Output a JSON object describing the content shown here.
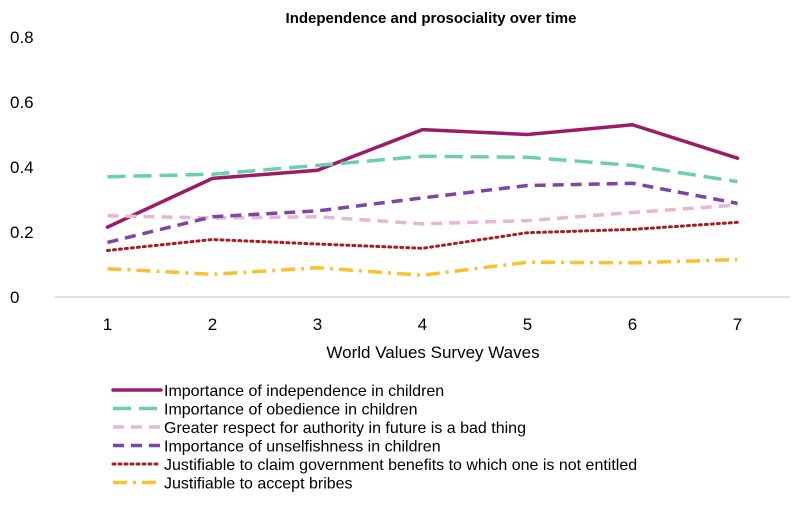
{
  "chart_data": {
    "type": "line",
    "title": "Independence and prosociality over time",
    "xlabel": "World Values Survey Waves",
    "ylabel": "",
    "x": [
      1,
      2,
      3,
      4,
      5,
      6,
      7
    ],
    "ylim": [
      0,
      0.8
    ],
    "yticks": [
      "0",
      "0.2",
      "0.4",
      "0.6",
      "0.8"
    ],
    "xticks": [
      "1",
      "2",
      "3",
      "4",
      "5",
      "6",
      "7"
    ],
    "grid": false,
    "legend_position": "bottom",
    "series": [
      {
        "name": "Importance of independence in children",
        "values": [
          0.215,
          0.365,
          0.39,
          0.515,
          0.5,
          0.53,
          0.427
        ],
        "color": "#9B1B66",
        "dash": "solid"
      },
      {
        "name": "Importance of obedience in children",
        "values": [
          0.37,
          0.378,
          0.405,
          0.433,
          0.43,
          0.405,
          0.355
        ],
        "color": "#6CCDB4",
        "dash": "longdash"
      },
      {
        "name": "Greater respect for authority in future is a bad thing",
        "values": [
          0.25,
          0.243,
          0.247,
          0.225,
          0.235,
          0.26,
          0.283
        ],
        "color": "#E4B7D7",
        "dash": "dash"
      },
      {
        "name": "Importance of unselfishness in children",
        "values": [
          0.168,
          0.247,
          0.265,
          0.305,
          0.343,
          0.35,
          0.288
        ],
        "color": "#7E46A3",
        "dash": "dash"
      },
      {
        "name": "Justifiable to claim government benefits to which one is not entitled",
        "values": [
          0.143,
          0.177,
          0.163,
          0.15,
          0.198,
          0.208,
          0.23
        ],
        "color": "#A41E22",
        "dash": "dot"
      },
      {
        "name": "Justifiable to accept bribes",
        "values": [
          0.087,
          0.07,
          0.09,
          0.067,
          0.107,
          0.105,
          0.115
        ],
        "color": "#F7C22B",
        "dash": "dashdot"
      }
    ]
  }
}
